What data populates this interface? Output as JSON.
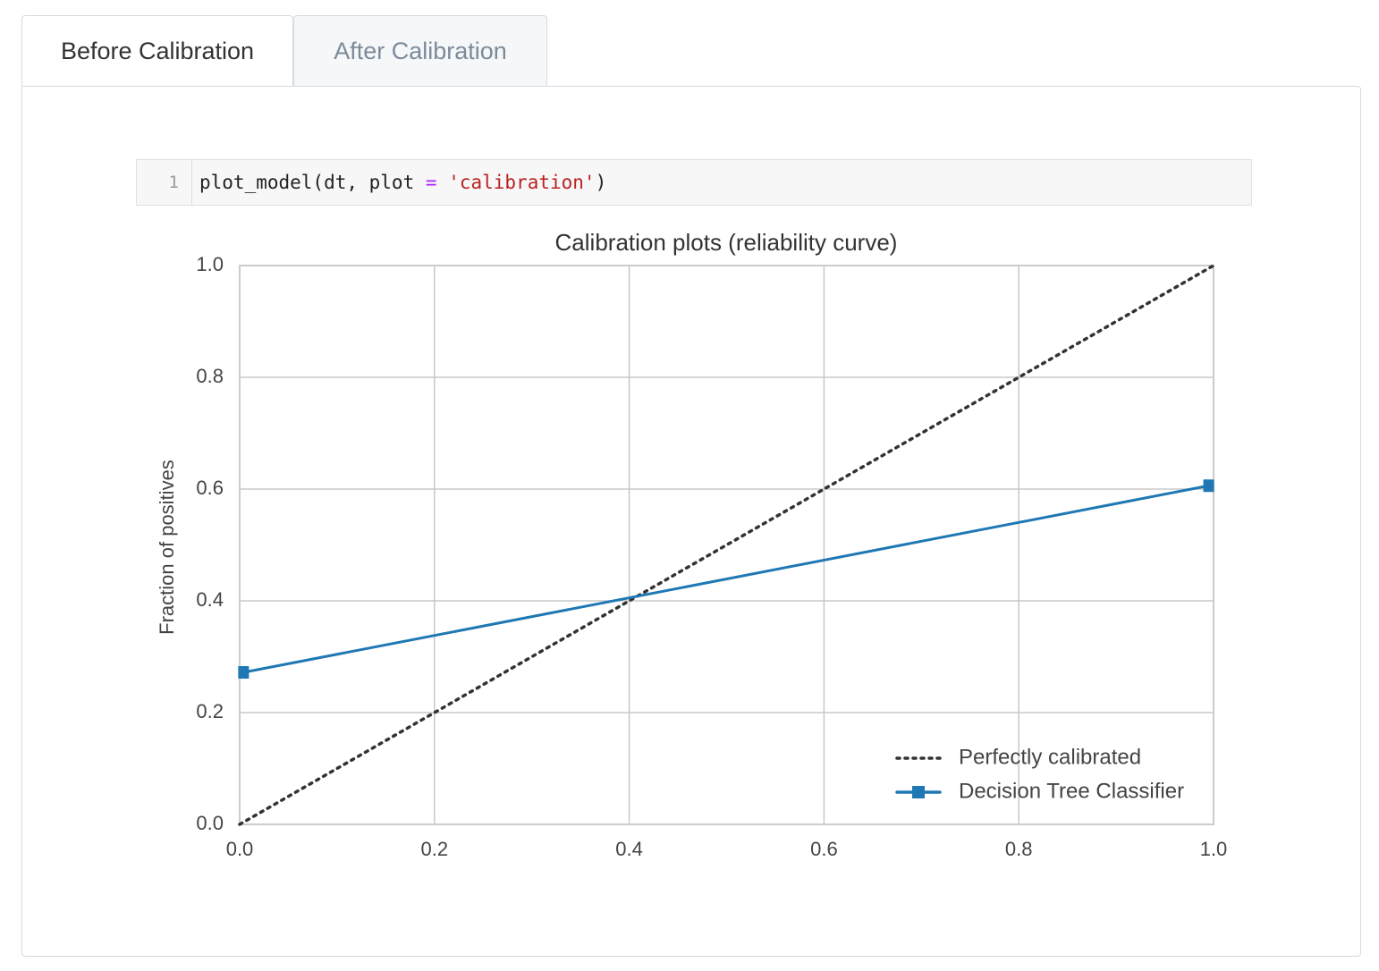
{
  "tabs": [
    {
      "label": "Before Calibration",
      "active": true
    },
    {
      "label": "After Calibration",
      "active": false
    }
  ],
  "code": {
    "line_number": "1",
    "tokens": [
      {
        "text": "plot_model(dt, plot ",
        "color": "#222222"
      },
      {
        "text": "=",
        "color": "#aa22ff"
      },
      {
        "text": " ",
        "color": "#222222"
      },
      {
        "text": "'calibration'",
        "color": "#ba2121"
      },
      {
        "text": ")",
        "color": "#222222"
      }
    ]
  },
  "chart_data": {
    "type": "line",
    "title": "Calibration plots (reliability curve)",
    "ylabel": "Fraction of positives",
    "xlim": [
      0,
      1
    ],
    "ylim": [
      0,
      1
    ],
    "xticks": [
      {
        "value": 0,
        "label": "0.0"
      },
      0.2,
      0.4,
      0.6,
      0.8,
      {
        "value": 1,
        "label": "1.0"
      }
    ],
    "yticks": [
      {
        "value": 0,
        "label": "0.0"
      },
      0.2,
      0.4,
      0.6,
      0.8,
      {
        "value": 1,
        "label": "1.0"
      }
    ],
    "grid": true,
    "legend": "lower right",
    "series": [
      {
        "name": "Perfectly calibrated",
        "color": "#333333",
        "style": "dotted",
        "marker": null,
        "x": [
          0,
          1
        ],
        "values": [
          0,
          1
        ]
      },
      {
        "name": "Decision Tree Classifier",
        "color": "#1f78b4",
        "style": "solid",
        "marker": "square",
        "x": [
          0.004,
          0.995
        ],
        "values": [
          0.272,
          0.606
        ]
      }
    ]
  }
}
